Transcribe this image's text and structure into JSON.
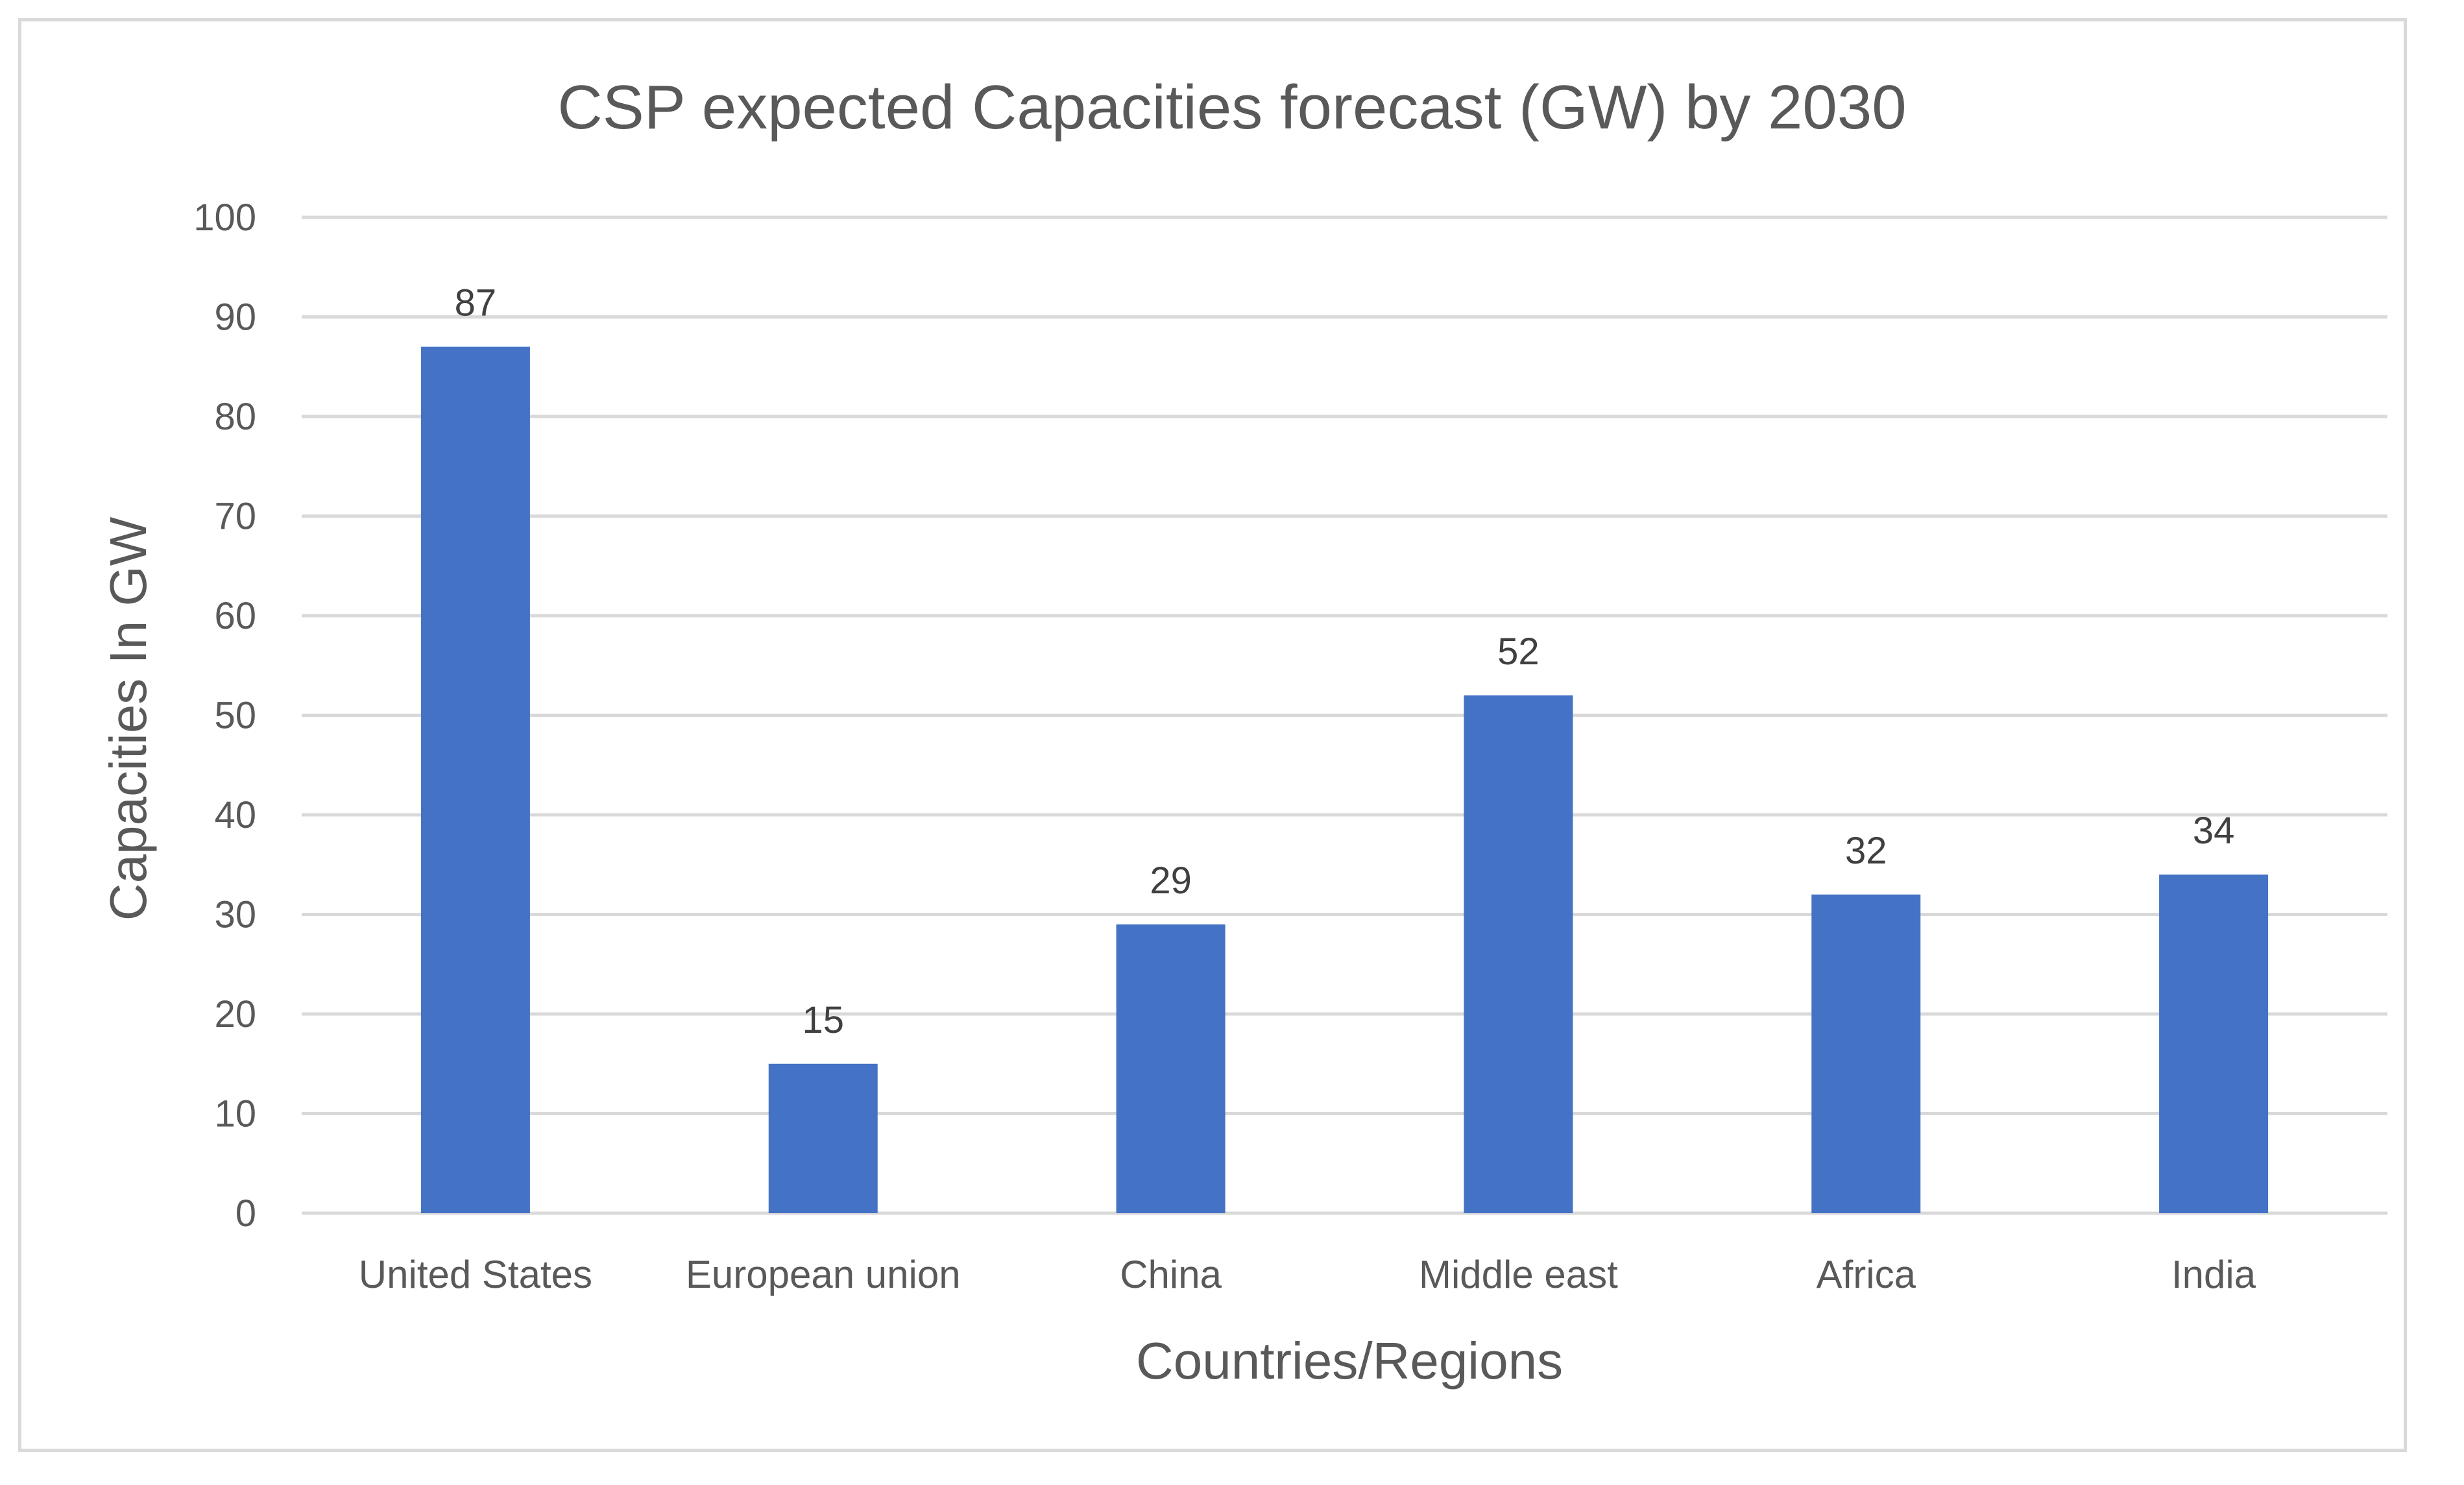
{
  "chart_data": {
    "type": "bar",
    "title": "CSP expected Capacities forecast (GW) by 2030",
    "xlabel": "Countries/Regions",
    "ylabel": "Capacities In GW",
    "categories": [
      "United States",
      "European union",
      "China",
      "Middle east",
      "Africa",
      "India"
    ],
    "values": [
      87,
      15,
      29,
      52,
      32,
      34
    ],
    "ylim": [
      0,
      100
    ],
    "yticks": [
      0,
      10,
      20,
      30,
      40,
      50,
      60,
      70,
      80,
      90,
      100
    ],
    "yticks_labels": [
      "0",
      "10",
      "20",
      "30",
      "40",
      "50",
      "60",
      "70",
      "80",
      "90",
      "100"
    ],
    "data_labels": [
      "87",
      "15",
      "29",
      "52",
      "32",
      "34"
    ],
    "grid": true,
    "legend": "none",
    "bar_color": "#4472c4",
    "grid_color": "#d9d9d9"
  }
}
